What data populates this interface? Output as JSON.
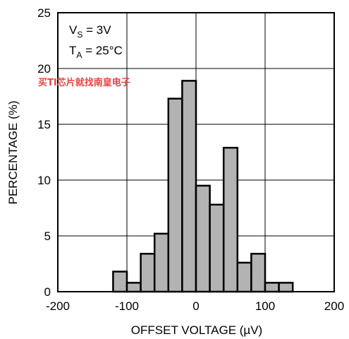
{
  "chart_data": {
    "type": "bar",
    "xlabel": "OFFSET VOLTAGE (µV)",
    "ylabel": "PERCENTAGE (%)",
    "xlim": [
      -200,
      200
    ],
    "ylim": [
      0,
      25
    ],
    "x_ticks": [
      "-200",
      "-100",
      "0",
      "100",
      "200"
    ],
    "y_ticks": [
      "0",
      "5",
      "10",
      "15",
      "20",
      "25"
    ],
    "grid": true,
    "bar_color": "#b3b3b3",
    "bins": [
      {
        "start": -120,
        "end": -100,
        "value": 1.8
      },
      {
        "start": -100,
        "end": -80,
        "value": 0.8
      },
      {
        "start": -80,
        "end": -60,
        "value": 3.4
      },
      {
        "start": -60,
        "end": -40,
        "value": 5.2
      },
      {
        "start": -40,
        "end": -20,
        "value": 17.3
      },
      {
        "start": -20,
        "end": 0,
        "value": 18.9
      },
      {
        "start": 0,
        "end": 20,
        "value": 9.5
      },
      {
        "start": 20,
        "end": 40,
        "value": 7.8
      },
      {
        "start": 40,
        "end": 60,
        "value": 12.9
      },
      {
        "start": 60,
        "end": 80,
        "value": 2.6
      },
      {
        "start": 80,
        "end": 100,
        "value": 3.4
      },
      {
        "start": 100,
        "end": 120,
        "value": 0.8
      },
      {
        "start": 120,
        "end": 140,
        "value": 0.8
      }
    ],
    "annotations": [
      {
        "main": "V",
        "sub": "S",
        "rest": " = 3V"
      },
      {
        "main": "T",
        "sub": "A",
        "rest": " = 25°C"
      }
    ]
  },
  "watermark": "买TI芯片就找南皇电子"
}
